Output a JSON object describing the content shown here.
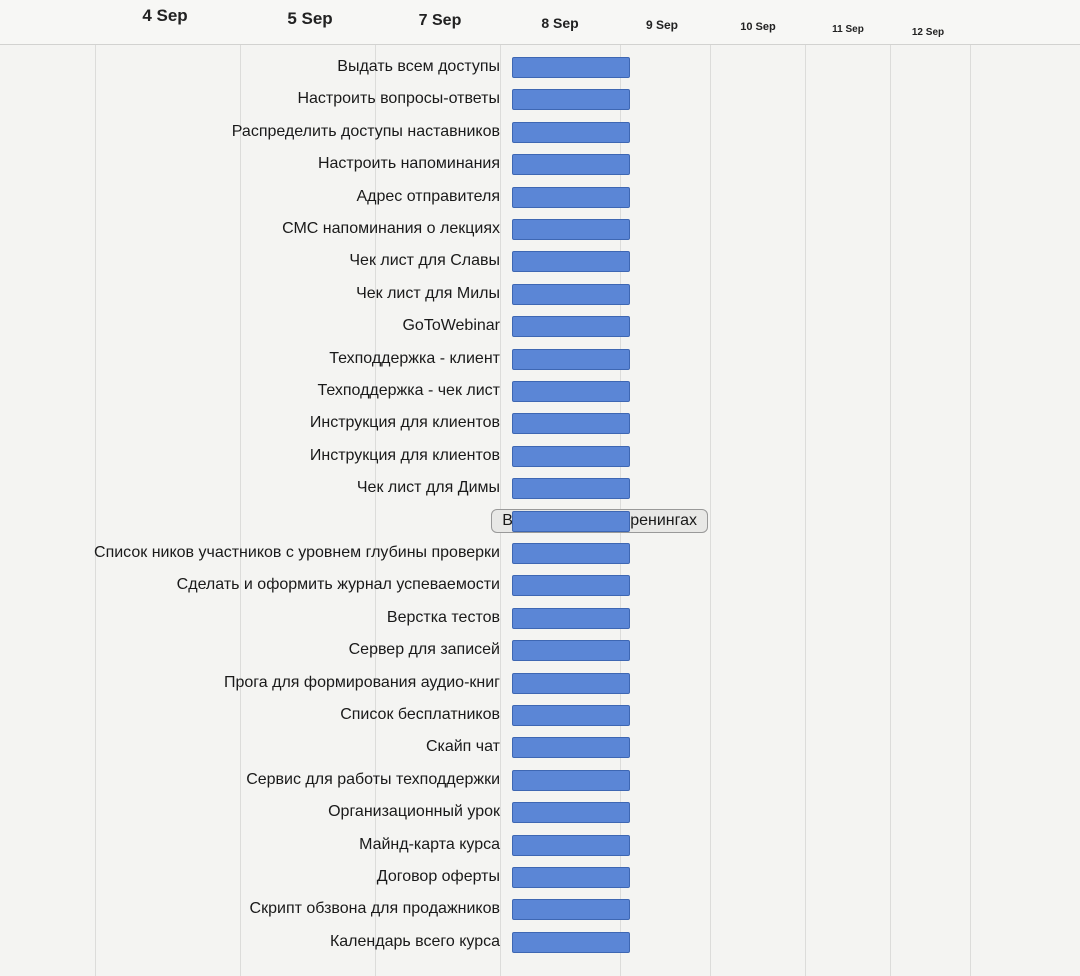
{
  "header": {
    "dates": [
      "4 Sep",
      "5 Sep",
      "7 Sep",
      "8 Sep",
      "9 Sep",
      "10 Sep",
      "11 Sep",
      "12 Sep"
    ]
  },
  "tasks": [
    {
      "name": "Выдать всем доступы"
    },
    {
      "name": "Настроить вопросы-ответы"
    },
    {
      "name": "Распределить доступы наставников"
    },
    {
      "name": "Настроить напоминания"
    },
    {
      "name": "Адрес отправителя"
    },
    {
      "name": "СМС напоминания о лекциях"
    },
    {
      "name": "Чек лист для Славы"
    },
    {
      "name": "Чек лист для Милы"
    },
    {
      "name": "GoToWebinar"
    },
    {
      "name": "Техподдержка - клиент"
    },
    {
      "name": "Техподдержка - чек лист"
    },
    {
      "name": "Инструкция для клиентов"
    },
    {
      "name": "Инструкция для клиентов"
    },
    {
      "name": "Чек лист для Димы"
    },
    {
      "name": "Верстка на антитренингах",
      "selected": true
    },
    {
      "name": "Список ников участников с уровнем глубины проверки"
    },
    {
      "name": "Сделать и оформить журнал успеваемости"
    },
    {
      "name": "Верстка тестов"
    },
    {
      "name": "Сервер для записей"
    },
    {
      "name": "Прога для формирования аудио-книг"
    },
    {
      "name": "Список бесплатников"
    },
    {
      "name": "Скайп чат"
    },
    {
      "name": "Сервис для работы техподдержки"
    },
    {
      "name": "Организационный урок"
    },
    {
      "name": "Майнд-карта курса"
    },
    {
      "name": "Договор оферты"
    },
    {
      "name": "Скрипт обзвона для продажников"
    },
    {
      "name": "Календарь всего курса"
    }
  ]
}
